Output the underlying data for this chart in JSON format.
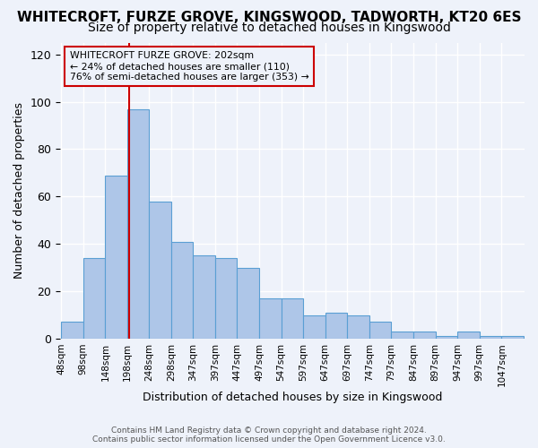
{
  "title": "WHITECROFT, FURZE GROVE, KINGSWOOD, TADWORTH, KT20 6ES",
  "subtitle": "Size of property relative to detached houses in Kingswood",
  "xlabel": "Distribution of detached houses by size in Kingswood",
  "ylabel": "Number of detached properties",
  "footer_line1": "Contains HM Land Registry data © Crown copyright and database right 2024.",
  "footer_line2": "Contains public sector information licensed under the Open Government Licence v3.0.",
  "bar_edges": [
    48,
    98,
    148,
    198,
    248,
    298,
    347,
    397,
    447,
    497,
    547,
    597,
    647,
    697,
    747,
    797,
    847,
    897,
    947,
    997,
    1047,
    1097
  ],
  "bar_heights": [
    7,
    34,
    69,
    97,
    58,
    41,
    35,
    34,
    30,
    17,
    17,
    10,
    11,
    10,
    7,
    3,
    3,
    1,
    3,
    1,
    1
  ],
  "bar_color": "#aec6e8",
  "bar_edge_color": "#5a9fd4",
  "property_size": 202,
  "property_label": "WHITECROFT FURZE GROVE: 202sqm",
  "annotation_line1": "← 24% of detached houses are smaller (110)",
  "annotation_line2": "76% of semi-detached houses are larger (353) →",
  "vline_color": "#cc0000",
  "annotation_box_edge": "#cc0000",
  "ylim": [
    0,
    125
  ],
  "yticks": [
    0,
    20,
    40,
    60,
    80,
    100,
    120
  ],
  "xtick_labels": [
    "48sqm",
    "98sqm",
    "148sqm",
    "198sqm",
    "248sqm",
    "298sqm",
    "347sqm",
    "397sqm",
    "447sqm",
    "497sqm",
    "547sqm",
    "597sqm",
    "647sqm",
    "697sqm",
    "747sqm",
    "797sqm",
    "847sqm",
    "897sqm",
    "947sqm",
    "997sqm",
    "1047sqm"
  ],
  "bg_color": "#eef2fa",
  "grid_color": "#ffffff",
  "title_fontsize": 11,
  "subtitle_fontsize": 10,
  "tick_label_fontsize": 7.5,
  "axis_label_fontsize": 9
}
